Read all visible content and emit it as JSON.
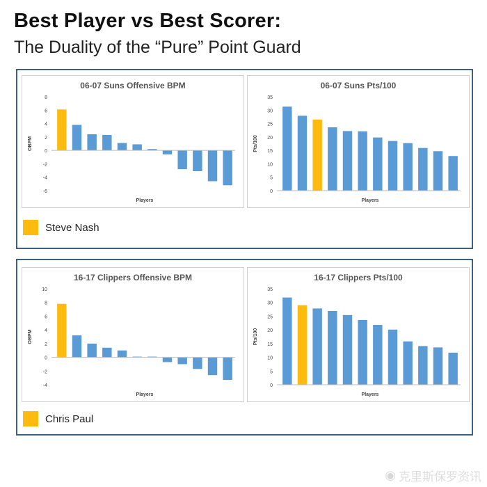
{
  "header": {
    "title": "Best Player vs Best Scorer:",
    "subtitle": "The Duality of the “Pure” Point Guard"
  },
  "colors": {
    "highlight": "#fdbb10",
    "bar": "#5b9bd5",
    "frame": "#3f5f7f"
  },
  "legends": [
    {
      "label": "Steve Nash",
      "color": "#fdbb10"
    },
    {
      "label": "Chris Paul",
      "color": "#fdbb10"
    }
  ],
  "watermark": {
    "text": "克里斯保罗资讯",
    "icon": "weibo-icon"
  },
  "chart_data": [
    {
      "type": "bar",
      "title": "06-07 Suns Offensive BPM",
      "xlabel": "Players",
      "ylabel": "OBPM",
      "ylim": [
        -6,
        8
      ],
      "yticks": [
        -6,
        -4,
        -2,
        0,
        2,
        4,
        6,
        8
      ],
      "values": [
        6.1,
        3.8,
        2.4,
        2.3,
        1.1,
        0.9,
        0.2,
        -0.6,
        -2.8,
        -3.1,
        -4.6,
        -5.2
      ],
      "highlight_index": 0
    },
    {
      "type": "bar",
      "title": "06-07 Suns Pts/100",
      "xlabel": "Players",
      "ylabel": "Pts/100",
      "ylim": [
        0,
        35
      ],
      "yticks": [
        0,
        5,
        10,
        15,
        20,
        25,
        30,
        35
      ],
      "values": [
        31.3,
        27.9,
        26.5,
        23.6,
        22.2,
        22.1,
        19.8,
        18.5,
        17.7,
        15.9,
        14.7,
        12.9
      ],
      "highlight_index": 2
    },
    {
      "type": "bar",
      "title": "16-17 Clippers Offensive BPM",
      "xlabel": "Players",
      "ylabel": "OBPM",
      "ylim": [
        -4,
        10
      ],
      "yticks": [
        -4,
        -2,
        0,
        2,
        4,
        6,
        8,
        10
      ],
      "values": [
        7.8,
        3.2,
        2.0,
        1.4,
        1.0,
        0.1,
        0.1,
        -0.7,
        -1.0,
        -1.7,
        -2.6,
        -3.3
      ],
      "highlight_index": 0
    },
    {
      "type": "bar",
      "title": "16-17 Clippers Pts/100",
      "xlabel": "Players",
      "ylabel": "Pts/100",
      "ylim": [
        0,
        35
      ],
      "yticks": [
        0,
        5,
        10,
        15,
        20,
        25,
        30,
        35
      ],
      "values": [
        31.8,
        29.0,
        27.8,
        26.9,
        25.4,
        23.6,
        21.8,
        20.1,
        15.8,
        14.1,
        13.6,
        11.7
      ],
      "highlight_index": 1
    }
  ]
}
